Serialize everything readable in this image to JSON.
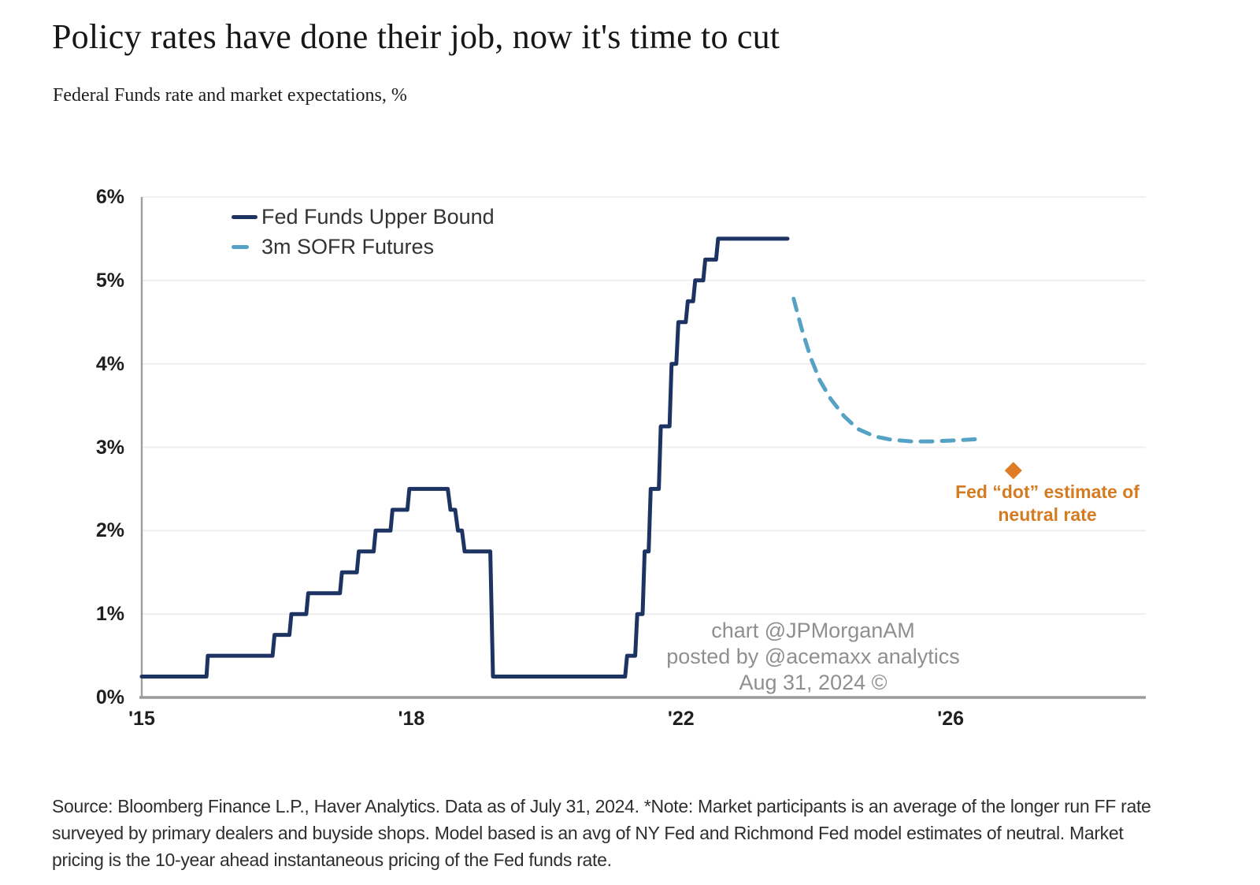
{
  "header": {
    "title": "Policy rates have done their job, now it's time to cut",
    "subtitle": "Federal Funds rate and market expectations, %"
  },
  "watermark": {
    "line1": "chart @JPMorganAM",
    "line2": "posted by @acemaxx analytics",
    "line3": "Aug 31, 2024 ©"
  },
  "annotation": {
    "line1": "Fed “dot” estimate of",
    "line2": "neutral rate",
    "color": "#d57b22"
  },
  "footer": {
    "text": "Source: Bloomberg Finance L.P., Haver Analytics. Data as of July 31, 2024. *Note: Market participants is an average of the longer run FF rate surveyed by primary dealers and buyside shops. Model based is an avg of NY Fed and Richmond Fed model estimates of neutral. Market pricing is the 10-year ahead instantaneous pricing of the Fed funds rate."
  },
  "chart_data": {
    "type": "line",
    "title": "Policy rates have done their job, now it's time to cut",
    "subtitle": "Federal Funds rate and market expectations, %",
    "xlabel": "",
    "ylabel": "",
    "ylim": [
      0,
      6
    ],
    "grid": "horizontal",
    "legend_position": "top-left",
    "y_ticks": [
      {
        "label": "0%",
        "value": 0
      },
      {
        "label": "1%",
        "value": 1
      },
      {
        "label": "2%",
        "value": 2
      },
      {
        "label": "3%",
        "value": 3
      },
      {
        "label": "4%",
        "value": 4
      },
      {
        "label": "5%",
        "value": 5
      },
      {
        "label": "6%",
        "value": 6
      }
    ],
    "x_ticks": [
      {
        "label": "'15",
        "x": 2015
      },
      {
        "label": "'18",
        "x": 2019
      },
      {
        "label": "'22",
        "x": 2023
      },
      {
        "label": "'26",
        "x": 2027
      }
    ],
    "series": [
      {
        "name": "Fed Funds Upper Bound",
        "color": "#1d3463",
        "style": "solid",
        "points": [
          [
            2015.0,
            0.25
          ],
          [
            2015.96,
            0.25
          ],
          [
            2015.98,
            0.5
          ],
          [
            2016.94,
            0.5
          ],
          [
            2016.97,
            0.75
          ],
          [
            2017.19,
            0.75
          ],
          [
            2017.22,
            1.0
          ],
          [
            2017.44,
            1.0
          ],
          [
            2017.47,
            1.25
          ],
          [
            2017.94,
            1.25
          ],
          [
            2017.97,
            1.5
          ],
          [
            2018.19,
            1.5
          ],
          [
            2018.22,
            1.75
          ],
          [
            2018.44,
            1.75
          ],
          [
            2018.47,
            2.0
          ],
          [
            2018.69,
            2.0
          ],
          [
            2018.72,
            2.25
          ],
          [
            2018.94,
            2.25
          ],
          [
            2018.97,
            2.5
          ],
          [
            2019.54,
            2.5
          ],
          [
            2019.58,
            2.25
          ],
          [
            2019.65,
            2.25
          ],
          [
            2019.69,
            2.0
          ],
          [
            2019.75,
            2.0
          ],
          [
            2019.79,
            1.75
          ],
          [
            2020.17,
            1.75
          ],
          [
            2020.21,
            0.25
          ],
          [
            2022.17,
            0.25
          ],
          [
            2022.2,
            0.5
          ],
          [
            2022.32,
            0.5
          ],
          [
            2022.35,
            1.0
          ],
          [
            2022.43,
            1.0
          ],
          [
            2022.46,
            1.75
          ],
          [
            2022.52,
            1.75
          ],
          [
            2022.55,
            2.5
          ],
          [
            2022.67,
            2.5
          ],
          [
            2022.7,
            3.25
          ],
          [
            2022.83,
            3.25
          ],
          [
            2022.86,
            4.0
          ],
          [
            2022.93,
            4.0
          ],
          [
            2022.96,
            4.5
          ],
          [
            2023.07,
            4.5
          ],
          [
            2023.1,
            4.75
          ],
          [
            2023.18,
            4.75
          ],
          [
            2023.21,
            5.0
          ],
          [
            2023.33,
            5.0
          ],
          [
            2023.36,
            5.25
          ],
          [
            2023.52,
            5.25
          ],
          [
            2023.55,
            5.5
          ],
          [
            2024.58,
            5.5
          ]
        ]
      },
      {
        "name": "3m SOFR Futures",
        "color": "#55a2c4",
        "style": "dashed",
        "points": [
          [
            2024.67,
            4.78
          ],
          [
            2024.79,
            4.42
          ],
          [
            2024.92,
            4.08
          ],
          [
            2025.06,
            3.8
          ],
          [
            2025.22,
            3.58
          ],
          [
            2025.42,
            3.37
          ],
          [
            2025.62,
            3.22
          ],
          [
            2025.87,
            3.13
          ],
          [
            2026.12,
            3.09
          ],
          [
            2026.42,
            3.07
          ],
          [
            2026.72,
            3.07
          ],
          [
            2027.02,
            3.08
          ],
          [
            2027.25,
            3.09
          ],
          [
            2027.44,
            3.1
          ]
        ]
      }
    ],
    "point_marker": {
      "label": "Fed “dot” estimate of neutral rate",
      "shape": "diamond",
      "color": "#dd7c25",
      "x": 2027.93,
      "y": 2.72
    }
  }
}
